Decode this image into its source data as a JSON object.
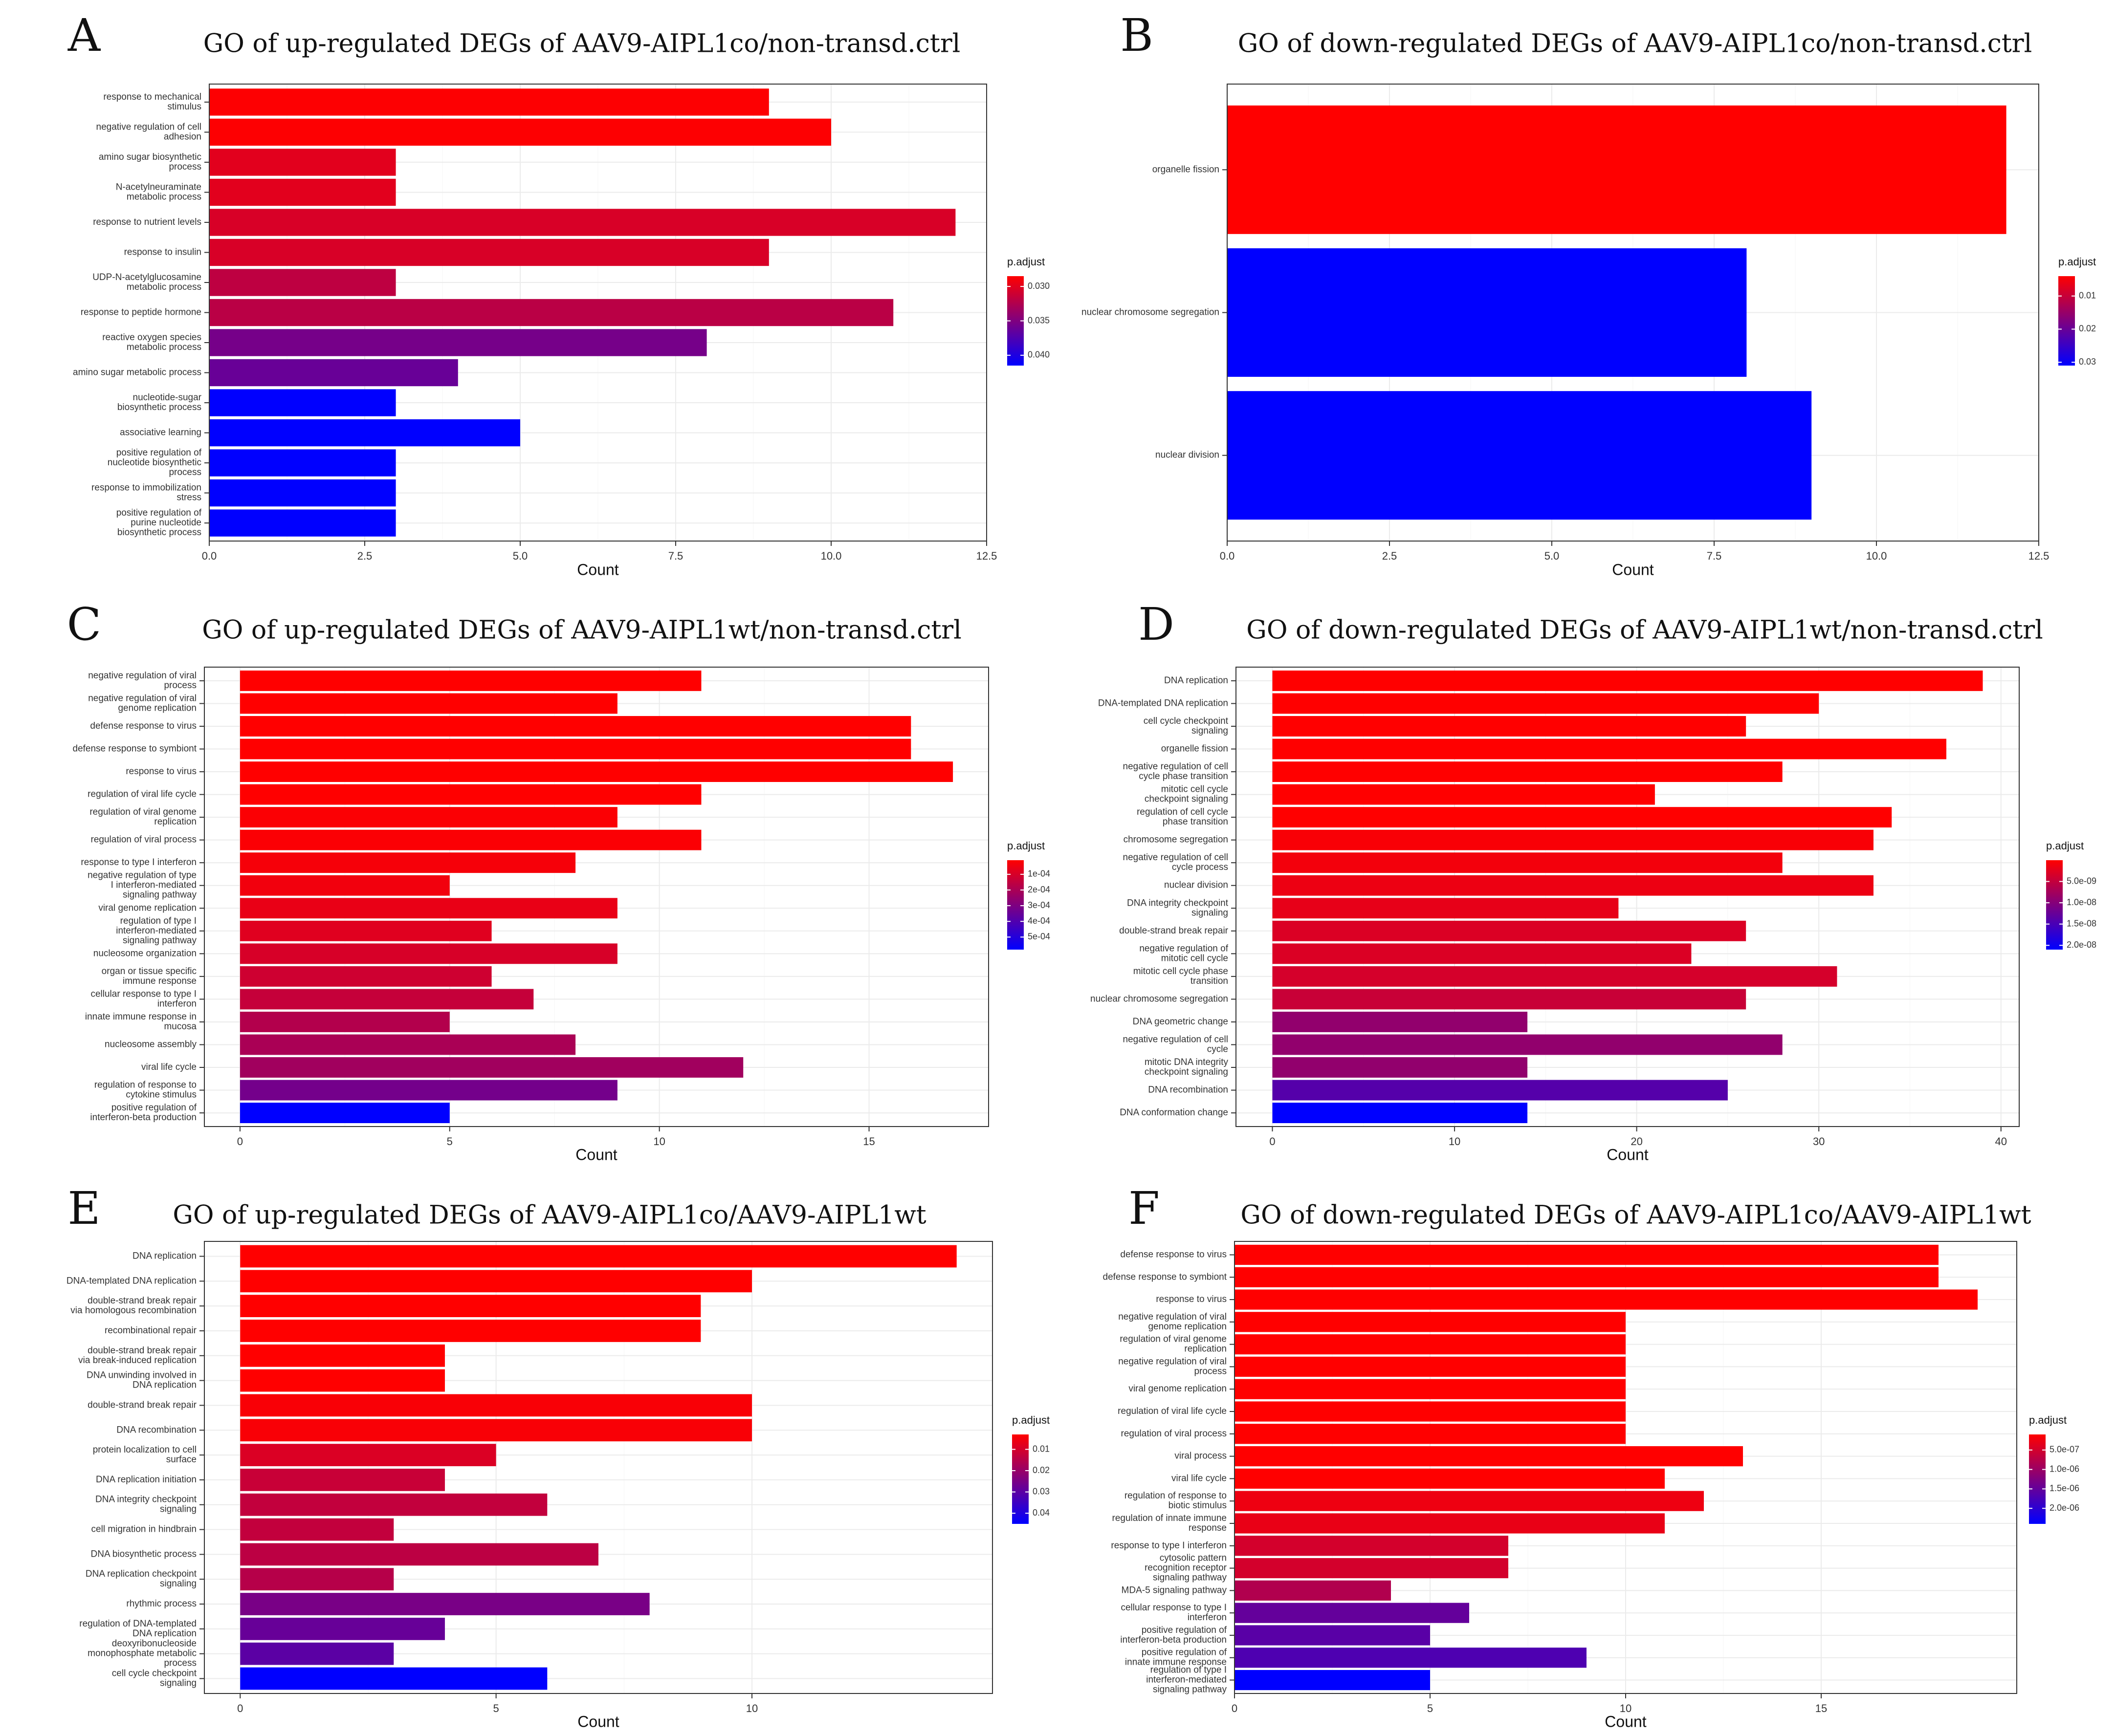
{
  "colors": {
    "low": "#FF0000",
    "high": "#0000FF"
  },
  "chart_data": [
    {
      "type": "bar",
      "panel": "A",
      "title": "GO of up-regulated DEGs of AAV9-AIPL1co/non-transd.ctrl",
      "xlabel": "Count",
      "ylabel": "",
      "xlim": [
        0,
        12.5
      ],
      "xticks": [
        0,
        2.5,
        5,
        7.5,
        10,
        12.5
      ],
      "xtick_labels": [
        "0.0",
        "2.5",
        "5.0",
        "7.5",
        "10.0",
        "12.5"
      ],
      "legend_title": "p.adjust",
      "legend_range": [
        0.0285,
        0.0415
      ],
      "legend_ticks": [
        0.03,
        0.035,
        0.04
      ],
      "legend_tick_labels": [
        "0.030",
        "0.035",
        "0.040"
      ],
      "categories": [
        [
          "response to mechanical",
          "stimulus"
        ],
        [
          "negative regulation of cell",
          "adhesion"
        ],
        [
          "amino sugar biosynthetic",
          "process"
        ],
        [
          "N-acetylneuraminate",
          "metabolic process"
        ],
        [
          "response to nutrient levels"
        ],
        [
          "response to insulin"
        ],
        [
          "UDP-N-acetylglucosamine",
          "metabolic process"
        ],
        [
          "response to peptide hormone"
        ],
        [
          "reactive oxygen species",
          "metabolic process"
        ],
        [
          "amino sugar metabolic process"
        ],
        [
          "nucleotide-sugar",
          "biosynthetic process"
        ],
        [
          "associative learning"
        ],
        [
          "positive regulation of",
          "nucleotide biosynthetic",
          "process"
        ],
        [
          "response to immobilization",
          "stress"
        ],
        [
          "positive regulation of",
          "purine nucleotide",
          "biosynthetic process"
        ]
      ],
      "values": [
        9,
        10,
        3,
        3,
        12,
        9,
        3,
        11,
        8,
        4,
        3,
        5,
        3,
        3,
        3
      ],
      "p_adjust": [
        0.0286,
        0.0286,
        0.03,
        0.03,
        0.0305,
        0.0305,
        0.0318,
        0.032,
        0.0355,
        0.0362,
        0.0415,
        0.0415,
        0.0415,
        0.0415,
        0.0415
      ]
    },
    {
      "type": "bar",
      "panel": "B",
      "title": "GO of down-regulated DEGs of AAV9-AIPL1co/non-transd.ctrl",
      "xlabel": "Count",
      "ylabel": "",
      "xlim": [
        0,
        12.5
      ],
      "xticks": [
        0,
        2.5,
        5,
        7.5,
        10,
        12.5
      ],
      "xtick_labels": [
        "0.0",
        "2.5",
        "5.0",
        "7.5",
        "10.0",
        "12.5"
      ],
      "legend_title": "p.adjust",
      "legend_range": [
        0.004,
        0.031
      ],
      "legend_ticks": [
        0.01,
        0.02,
        0.03
      ],
      "legend_tick_labels": [
        "0.01",
        "0.02",
        "0.03"
      ],
      "categories": [
        [
          "organelle fission"
        ],
        [
          "nuclear chromosome segregation"
        ],
        [
          "nuclear division"
        ]
      ],
      "values": [
        12,
        8,
        9
      ],
      "p_adjust": [
        0.004,
        0.031,
        0.031
      ]
    },
    {
      "type": "bar",
      "panel": "C",
      "title": "GO of up-regulated DEGs of AAV9-AIPL1wt/non-transd.ctrl",
      "xlabel": "Count",
      "ylabel": "",
      "xlim": [
        -0.85,
        17.85
      ],
      "xticks": [
        0,
        5,
        10,
        15
      ],
      "xtick_labels": [
        "0",
        "5",
        "10",
        "15"
      ],
      "legend_title": "p.adjust",
      "legend_range": [
        1e-05,
        0.00058
      ],
      "legend_ticks": [
        0.0001,
        0.0002,
        0.0003,
        0.0004,
        0.0005
      ],
      "legend_tick_labels": [
        "1e-04",
        "2e-04",
        "3e-04",
        "4e-04",
        "5e-04"
      ],
      "categories": [
        [
          "negative regulation of viral",
          "process"
        ],
        [
          "negative regulation of viral",
          "genome replication"
        ],
        [
          "defense response to virus"
        ],
        [
          "defense response to symbiont"
        ],
        [
          "response to virus"
        ],
        [
          "regulation of viral life cycle"
        ],
        [
          "regulation of viral genome",
          "replication"
        ],
        [
          "regulation of viral process"
        ],
        [
          "response to type I interferon"
        ],
        [
          "negative regulation of type",
          "I interferon-mediated",
          "signaling pathway"
        ],
        [
          "viral genome replication"
        ],
        [
          "regulation of type I",
          "interferon-mediated",
          "signaling pathway"
        ],
        [
          "nucleosome organization"
        ],
        [
          "organ or tissue specific",
          "immune response"
        ],
        [
          "cellular response to type I",
          "interferon"
        ],
        [
          "innate immune response in",
          "mucosa"
        ],
        [
          "nucleosome assembly"
        ],
        [
          "viral life cycle"
        ],
        [
          "regulation of response to",
          "cytokine stimulus"
        ],
        [
          "positive regulation of",
          "interferon-beta production"
        ]
      ],
      "values": [
        11,
        9,
        16,
        16,
        17,
        11,
        9,
        11,
        8,
        5,
        9,
        6,
        9,
        6,
        7,
        5,
        8,
        12,
        9,
        5
      ],
      "p_adjust": [
        1e-05,
        1e-05,
        1e-05,
        1e-05,
        1e-05,
        1e-05,
        2e-05,
        2e-05,
        3e-05,
        4e-05,
        6e-05,
        8e-05,
        0.0001,
        0.00012,
        0.00014,
        0.00018,
        0.0002,
        0.00022,
        0.00032,
        0.00058
      ]
    },
    {
      "type": "bar",
      "panel": "D",
      "title": "GO of down-regulated DEGs of AAV9-AIPL1wt/non-transd.ctrl",
      "xlabel": "Count",
      "ylabel": "",
      "xlim": [
        -2,
        41
      ],
      "xticks": [
        0,
        10,
        20,
        30,
        40
      ],
      "xtick_labels": [
        "0",
        "10",
        "20",
        "30",
        "40"
      ],
      "legend_title": "p.adjust",
      "legend_range": [
        0,
        2.1e-08
      ],
      "legend_ticks": [
        5e-09,
        1e-08,
        1.5e-08,
        2e-08
      ],
      "legend_tick_labels": [
        "5.0e-09",
        "1.0e-08",
        "1.5e-08",
        "2.0e-08"
      ],
      "categories": [
        [
          "DNA replication"
        ],
        [
          "DNA-templated DNA replication"
        ],
        [
          "cell cycle checkpoint",
          "signaling"
        ],
        [
          "organelle fission"
        ],
        [
          "negative regulation of cell",
          "cycle phase transition"
        ],
        [
          "mitotic cell cycle",
          "checkpoint signaling"
        ],
        [
          "regulation of cell cycle",
          "phase transition"
        ],
        [
          "chromosome segregation"
        ],
        [
          "negative regulation of cell",
          "cycle process"
        ],
        [
          "nuclear division"
        ],
        [
          "DNA integrity checkpoint",
          "signaling"
        ],
        [
          "double-strand break repair"
        ],
        [
          "negative regulation of",
          "mitotic cell cycle"
        ],
        [
          "mitotic cell cycle phase",
          "transition"
        ],
        [
          "nuclear chromosome segregation"
        ],
        [
          "DNA geometric change"
        ],
        [
          "negative regulation of cell",
          "cycle"
        ],
        [
          "mitotic DNA integrity",
          "checkpoint signaling"
        ],
        [
          "DNA recombination"
        ],
        [
          "DNA conformation change"
        ]
      ],
      "values": [
        39,
        30,
        26,
        37,
        28,
        21,
        34,
        33,
        28,
        33,
        19,
        26,
        23,
        31,
        26,
        14,
        28,
        14,
        25,
        14
      ],
      "p_adjust": [
        0,
        0,
        0,
        0,
        0,
        0,
        0,
        5e-10,
        1e-09,
        1.5e-09,
        2e-09,
        3e-09,
        3e-09,
        3.5e-09,
        4.5e-09,
        9e-09,
        9e-09,
        9e-09,
        1.4e-08,
        2.1e-08
      ]
    },
    {
      "type": "bar",
      "panel": "E",
      "title": "GO of up-regulated DEGs of AAV9-AIPL1co/AAV9-AIPL1wt",
      "xlabel": "Count",
      "ylabel": "",
      "xlim": [
        -0.7,
        14.7
      ],
      "xticks": [
        0,
        5,
        10
      ],
      "xtick_labels": [
        "0",
        "5",
        "10"
      ],
      "legend_title": "p.adjust",
      "legend_range": [
        0.003,
        0.045
      ],
      "legend_ticks": [
        0.01,
        0.02,
        0.03,
        0.04
      ],
      "legend_tick_labels": [
        "0.01",
        "0.02",
        "0.03",
        "0.04"
      ],
      "categories": [
        [
          "DNA replication"
        ],
        [
          "DNA-templated DNA replication"
        ],
        [
          "double-strand break repair",
          "via homologous recombination"
        ],
        [
          "recombinational repair"
        ],
        [
          "double-strand break repair",
          "via break-induced replication"
        ],
        [
          "DNA unwinding involved in",
          "DNA replication"
        ],
        [
          "double-strand break repair"
        ],
        [
          "DNA recombination"
        ],
        [
          "protein localization to cell",
          "surface"
        ],
        [
          "DNA replication initiation"
        ],
        [
          "DNA integrity checkpoint",
          "signaling"
        ],
        [
          "cell migration in hindbrain"
        ],
        [
          "DNA biosynthetic process"
        ],
        [
          "DNA replication checkpoint",
          "signaling"
        ],
        [
          "rhythmic process"
        ],
        [
          "regulation of DNA-templated",
          "DNA replication"
        ],
        [
          "deoxyribonucleoside",
          "monophosphate metabolic",
          "process"
        ],
        [
          "cell cycle checkpoint",
          "signaling"
        ]
      ],
      "values": [
        14,
        10,
        9,
        9,
        4,
        4,
        10,
        10,
        5,
        4,
        6,
        3,
        7,
        3,
        8,
        4,
        3,
        6
      ],
      "p_adjust": [
        0.003,
        0.003,
        0.003,
        0.003,
        0.003,
        0.003,
        0.004,
        0.004,
        0.009,
        0.012,
        0.013,
        0.013,
        0.014,
        0.015,
        0.025,
        0.028,
        0.03,
        0.045
      ]
    },
    {
      "type": "bar",
      "panel": "F",
      "title": "GO of down-regulated DEGs of AAV9-AIPL1co/AAV9-AIPL1wt",
      "xlabel": "Count",
      "ylabel": "",
      "xlim": [
        0,
        20
      ],
      "xticks": [
        0,
        5,
        10,
        15
      ],
      "xtick_labels": [
        "0",
        "5",
        "10",
        "15"
      ],
      "legend_title": "p.adjust",
      "legend_range": [
        1e-07,
        2.4e-06
      ],
      "legend_ticks": [
        5e-07,
        1e-06,
        1.5e-06,
        2e-06
      ],
      "legend_tick_labels": [
        "5.0e-07",
        "1.0e-06",
        "1.5e-06",
        "2.0e-06"
      ],
      "categories": [
        [
          "defense response to virus"
        ],
        [
          "defense response to symbiont"
        ],
        [
          "response to virus"
        ],
        [
          "negative regulation of viral",
          "genome replication"
        ],
        [
          "regulation of viral genome",
          "replication"
        ],
        [
          "negative regulation of viral",
          "process"
        ],
        [
          "viral genome replication"
        ],
        [
          "regulation of viral life cycle"
        ],
        [
          "regulation of viral process"
        ],
        [
          "viral process"
        ],
        [
          "viral life cycle"
        ],
        [
          "regulation of response to",
          "biotic stimulus"
        ],
        [
          "regulation of innate immune",
          "response"
        ],
        [
          "response to type I interferon"
        ],
        [
          "cytosolic pattern",
          "recognition receptor",
          "signaling pathway"
        ],
        [
          "MDA-5 signaling pathway"
        ],
        [
          "cellular response to type I",
          "interferon"
        ],
        [
          "positive regulation of",
          "interferon-beta production"
        ],
        [
          "positive regulation of",
          "innate immune response"
        ],
        [
          "regulation of type I",
          "interferon-mediated",
          "signaling pathway"
        ]
      ],
      "values": [
        18,
        18,
        19,
        10,
        10,
        10,
        10,
        10,
        10,
        13,
        11,
        12,
        11,
        7,
        7,
        4,
        6,
        5,
        9,
        5
      ],
      "p_adjust": [
        1e-07,
        1e-07,
        1e-07,
        1e-07,
        1e-07,
        1e-07,
        1e-07,
        1e-07,
        1e-07,
        1e-07,
        1e-07,
        2.5e-07,
        3e-07,
        5e-07,
        5e-07,
        8e-07,
        1.5e-06,
        1.6e-06,
        1.7e-06,
        2.4e-06
      ]
    }
  ]
}
